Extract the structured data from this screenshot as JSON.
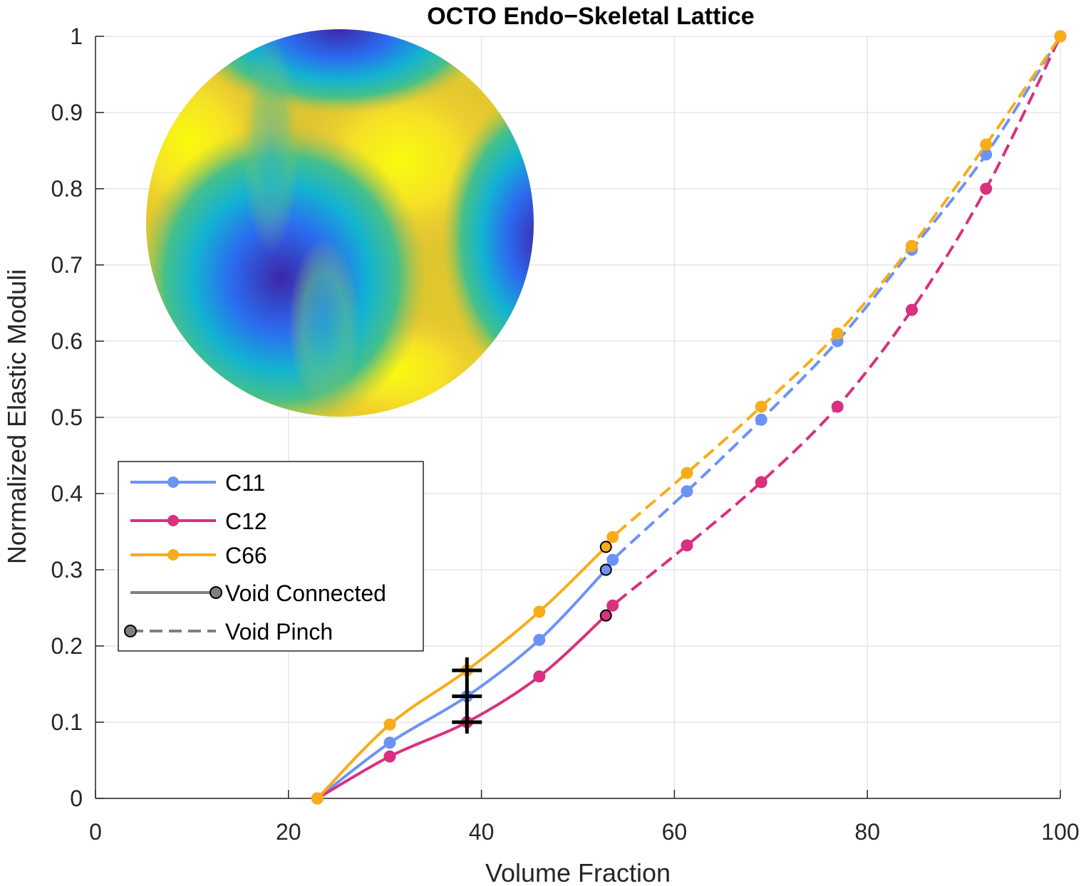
{
  "chart_data": {
    "type": "line",
    "title": "OCTO Endo−Skeletal Lattice",
    "xlabel": "Volume Fraction",
    "ylabel": "Normalized Elastic Moduli",
    "xlim": [
      0,
      100
    ],
    "ylim": [
      0,
      1
    ],
    "xticks": [
      "0",
      "20",
      "40",
      "60",
      "80",
      "100"
    ],
    "yticks": [
      "0",
      "0.1",
      "0.2",
      "0.3",
      "0.4",
      "0.5",
      "0.6",
      "0.7",
      "0.8",
      "0.9",
      "1"
    ],
    "grid": true,
    "legend_position": "middle-left",
    "legend": [
      "C11",
      "C12",
      "C66",
      "Void Connected",
      "Void Pinch"
    ],
    "inset": "sphere surface colormap (parula)",
    "series": [
      {
        "name": "C11",
        "color": "#6b93f5",
        "connected": {
          "x": [
            23,
            30.5,
            38.5,
            46,
            52.9
          ],
          "y": [
            0,
            0.073,
            0.134,
            0.208,
            0.3
          ]
        },
        "pinch": {
          "x": [
            52.9,
            53.6,
            61.3,
            69,
            76.9,
            84.6,
            92.3,
            100
          ],
          "y": [
            0.3,
            0.313,
            0.403,
            0.497,
            0.6,
            0.72,
            0.845,
            1.0
          ]
        },
        "transition": {
          "x": 52.9,
          "y": 0.3
        }
      },
      {
        "name": "C12",
        "color": "#d9307f",
        "connected": {
          "x": [
            23,
            30.5,
            38.5,
            46,
            52.9
          ],
          "y": [
            0,
            0.055,
            0.1,
            0.16,
            0.24
          ]
        },
        "pinch": {
          "x": [
            52.9,
            53.6,
            61.3,
            69,
            76.9,
            84.6,
            92.3,
            100
          ],
          "y": [
            0.24,
            0.253,
            0.332,
            0.415,
            0.514,
            0.641,
            0.8,
            1.0
          ]
        },
        "transition": {
          "x": 52.9,
          "y": 0.24
        }
      },
      {
        "name": "C66",
        "color": "#f7ad19",
        "connected": {
          "x": [
            23,
            30.5,
            38.5,
            46,
            52.9
          ],
          "y": [
            0,
            0.097,
            0.168,
            0.245,
            0.33
          ]
        },
        "pinch": {
          "x": [
            52.9,
            53.6,
            61.3,
            69,
            76.9,
            84.6,
            92.3,
            100
          ],
          "y": [
            0.33,
            0.343,
            0.427,
            0.514,
            0.61,
            0.725,
            0.858,
            1.0
          ]
        },
        "transition": {
          "x": 52.9,
          "y": 0.33
        }
      }
    ],
    "annotations": [
      {
        "type": "vertical-bar",
        "x": 38.5,
        "y_range": [
          0.085,
          0.185
        ]
      },
      {
        "type": "plus-marker",
        "x": 38.5,
        "y": 0.1
      },
      {
        "type": "plus-marker",
        "x": 38.5,
        "y": 0.134
      },
      {
        "type": "plus-marker",
        "x": 38.5,
        "y": 0.168
      }
    ]
  }
}
